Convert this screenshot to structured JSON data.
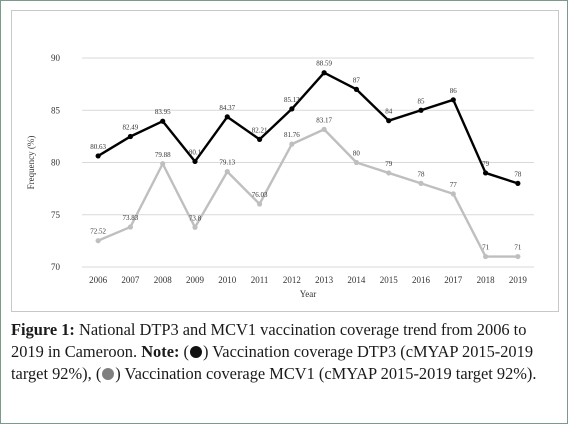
{
  "chart_data": {
    "type": "line",
    "x": [
      "2006",
      "2007",
      "2008",
      "2009",
      "2010",
      "2011",
      "2012",
      "2013",
      "2014",
      "2015",
      "2016",
      "2017",
      "2018",
      "2019"
    ],
    "series": [
      {
        "name": "Vaccination coverage DTP3",
        "color": "#000000",
        "values": [
          80.63,
          82.49,
          83.95,
          80.1,
          84.37,
          82.21,
          85.13,
          88.59,
          87,
          84,
          85,
          86,
          79,
          78
        ],
        "labels": [
          "80.63",
          "82.49",
          "83.95",
          "80.1",
          "84.37",
          "82.21",
          "85.13",
          "88.59",
          "87",
          "84",
          "85",
          "86",
          "79",
          "78"
        ]
      },
      {
        "name": "Vaccination coverage MCV1",
        "color": "#bfbfbf",
        "values": [
          72.52,
          73.83,
          79.88,
          73.8,
          79.13,
          76.03,
          81.76,
          83.17,
          80,
          79,
          78,
          77,
          71,
          71
        ],
        "labels": [
          "72.52",
          "73.83",
          "79.88",
          "73.8",
          "79.13",
          "76.03",
          "81.76",
          "83.17",
          "80",
          "79",
          "78",
          "77",
          "71",
          "71"
        ]
      }
    ],
    "xlabel": "Year",
    "ylabel": "Frequency (%)",
    "ylim": [
      70,
      90
    ],
    "yticks": [
      "70",
      "75",
      "80",
      "85",
      "90"
    ],
    "grid": "horizontal"
  },
  "caption": {
    "figure_label": "Figure 1:",
    "main": " National DTP3 and MCV1 vaccination coverage trend from 2006 to 2019 in Cameroon. ",
    "note_label": "Note:",
    "part1": " Vaccination coverage DTP3 (cMYAP 2015-2019 target 92%), ",
    "part2": " Vaccination coverage MCV1 (cMYAP 2015-2019 target 92%).",
    "swatch1_color": "#111111",
    "swatch2_color": "#7f7f7f"
  }
}
